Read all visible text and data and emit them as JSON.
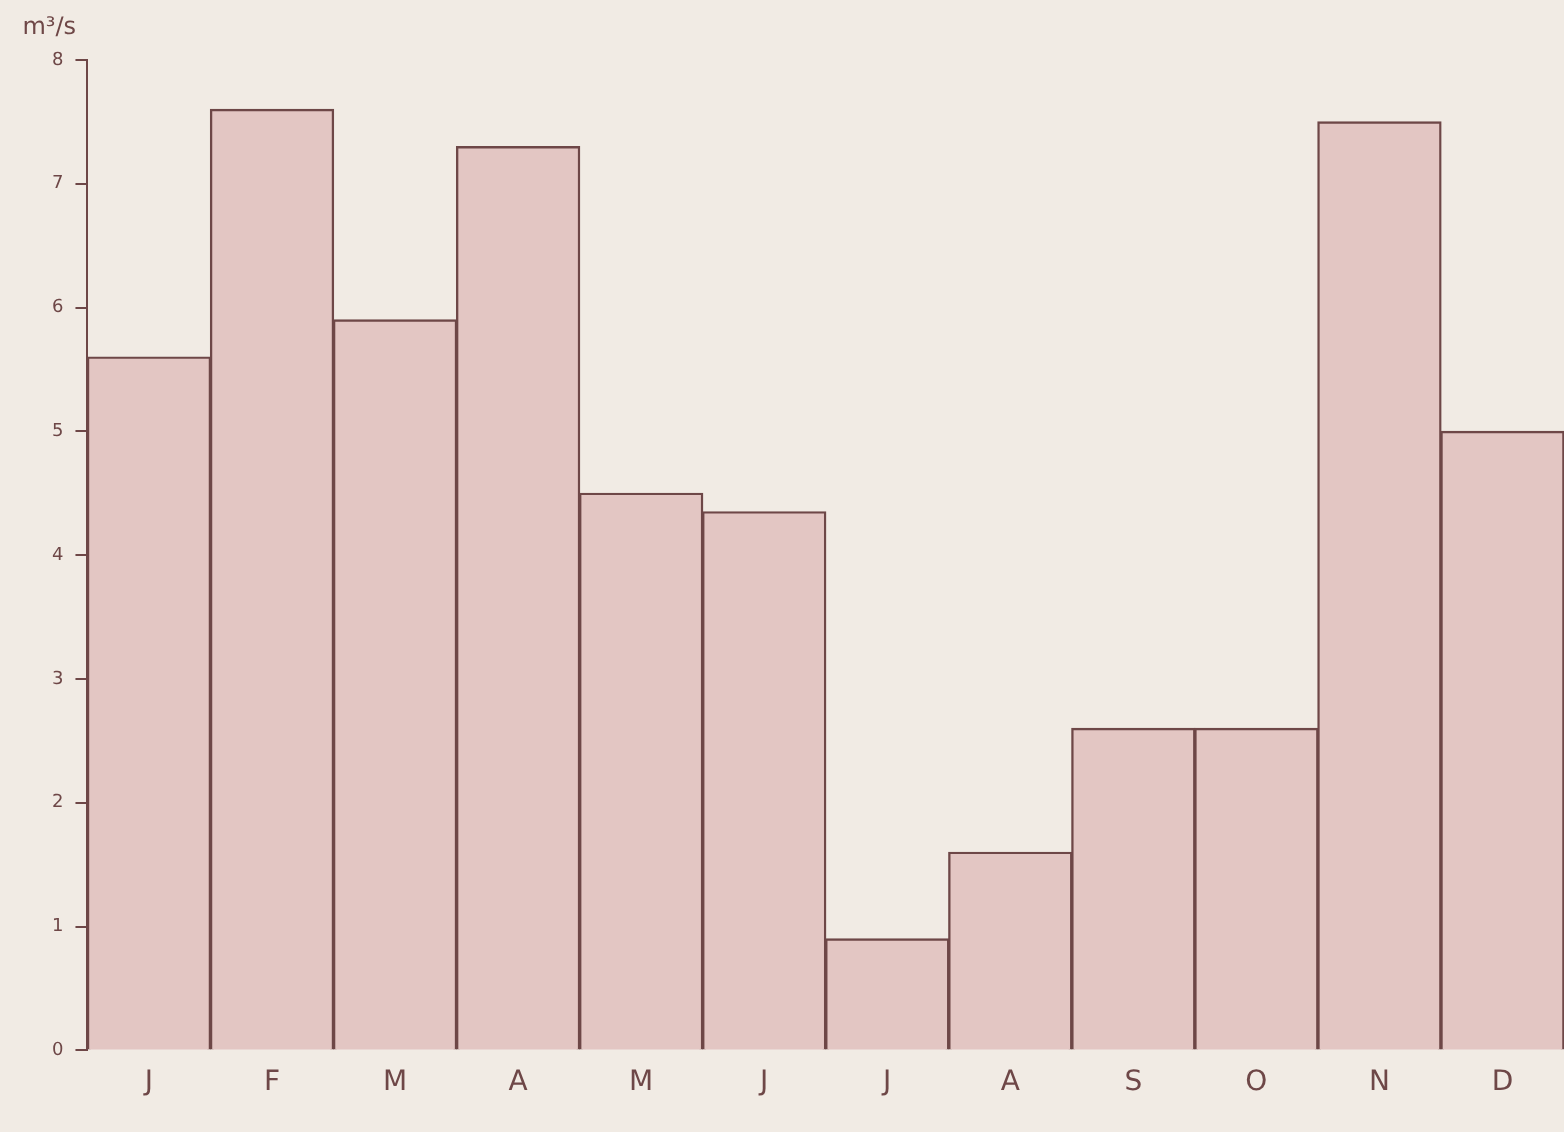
{
  "chart_data": {
    "type": "bar",
    "ylabel": "m³/s",
    "categories": [
      "J",
      "F",
      "M",
      "A",
      "M",
      "J",
      "J",
      "A",
      "S",
      "O",
      "N",
      "D"
    ],
    "values": [
      5.6,
      7.6,
      5.9,
      7.3,
      4.5,
      4.35,
      0.9,
      1.6,
      2.6,
      2.6,
      7.5,
      5.0
    ],
    "color": "#e3c6c3",
    "ylim": [
      0,
      8
    ],
    "yticks": [
      0,
      1,
      2,
      3,
      4,
      5,
      6,
      7,
      8
    ],
    "grid": false,
    "legend": false
  }
}
